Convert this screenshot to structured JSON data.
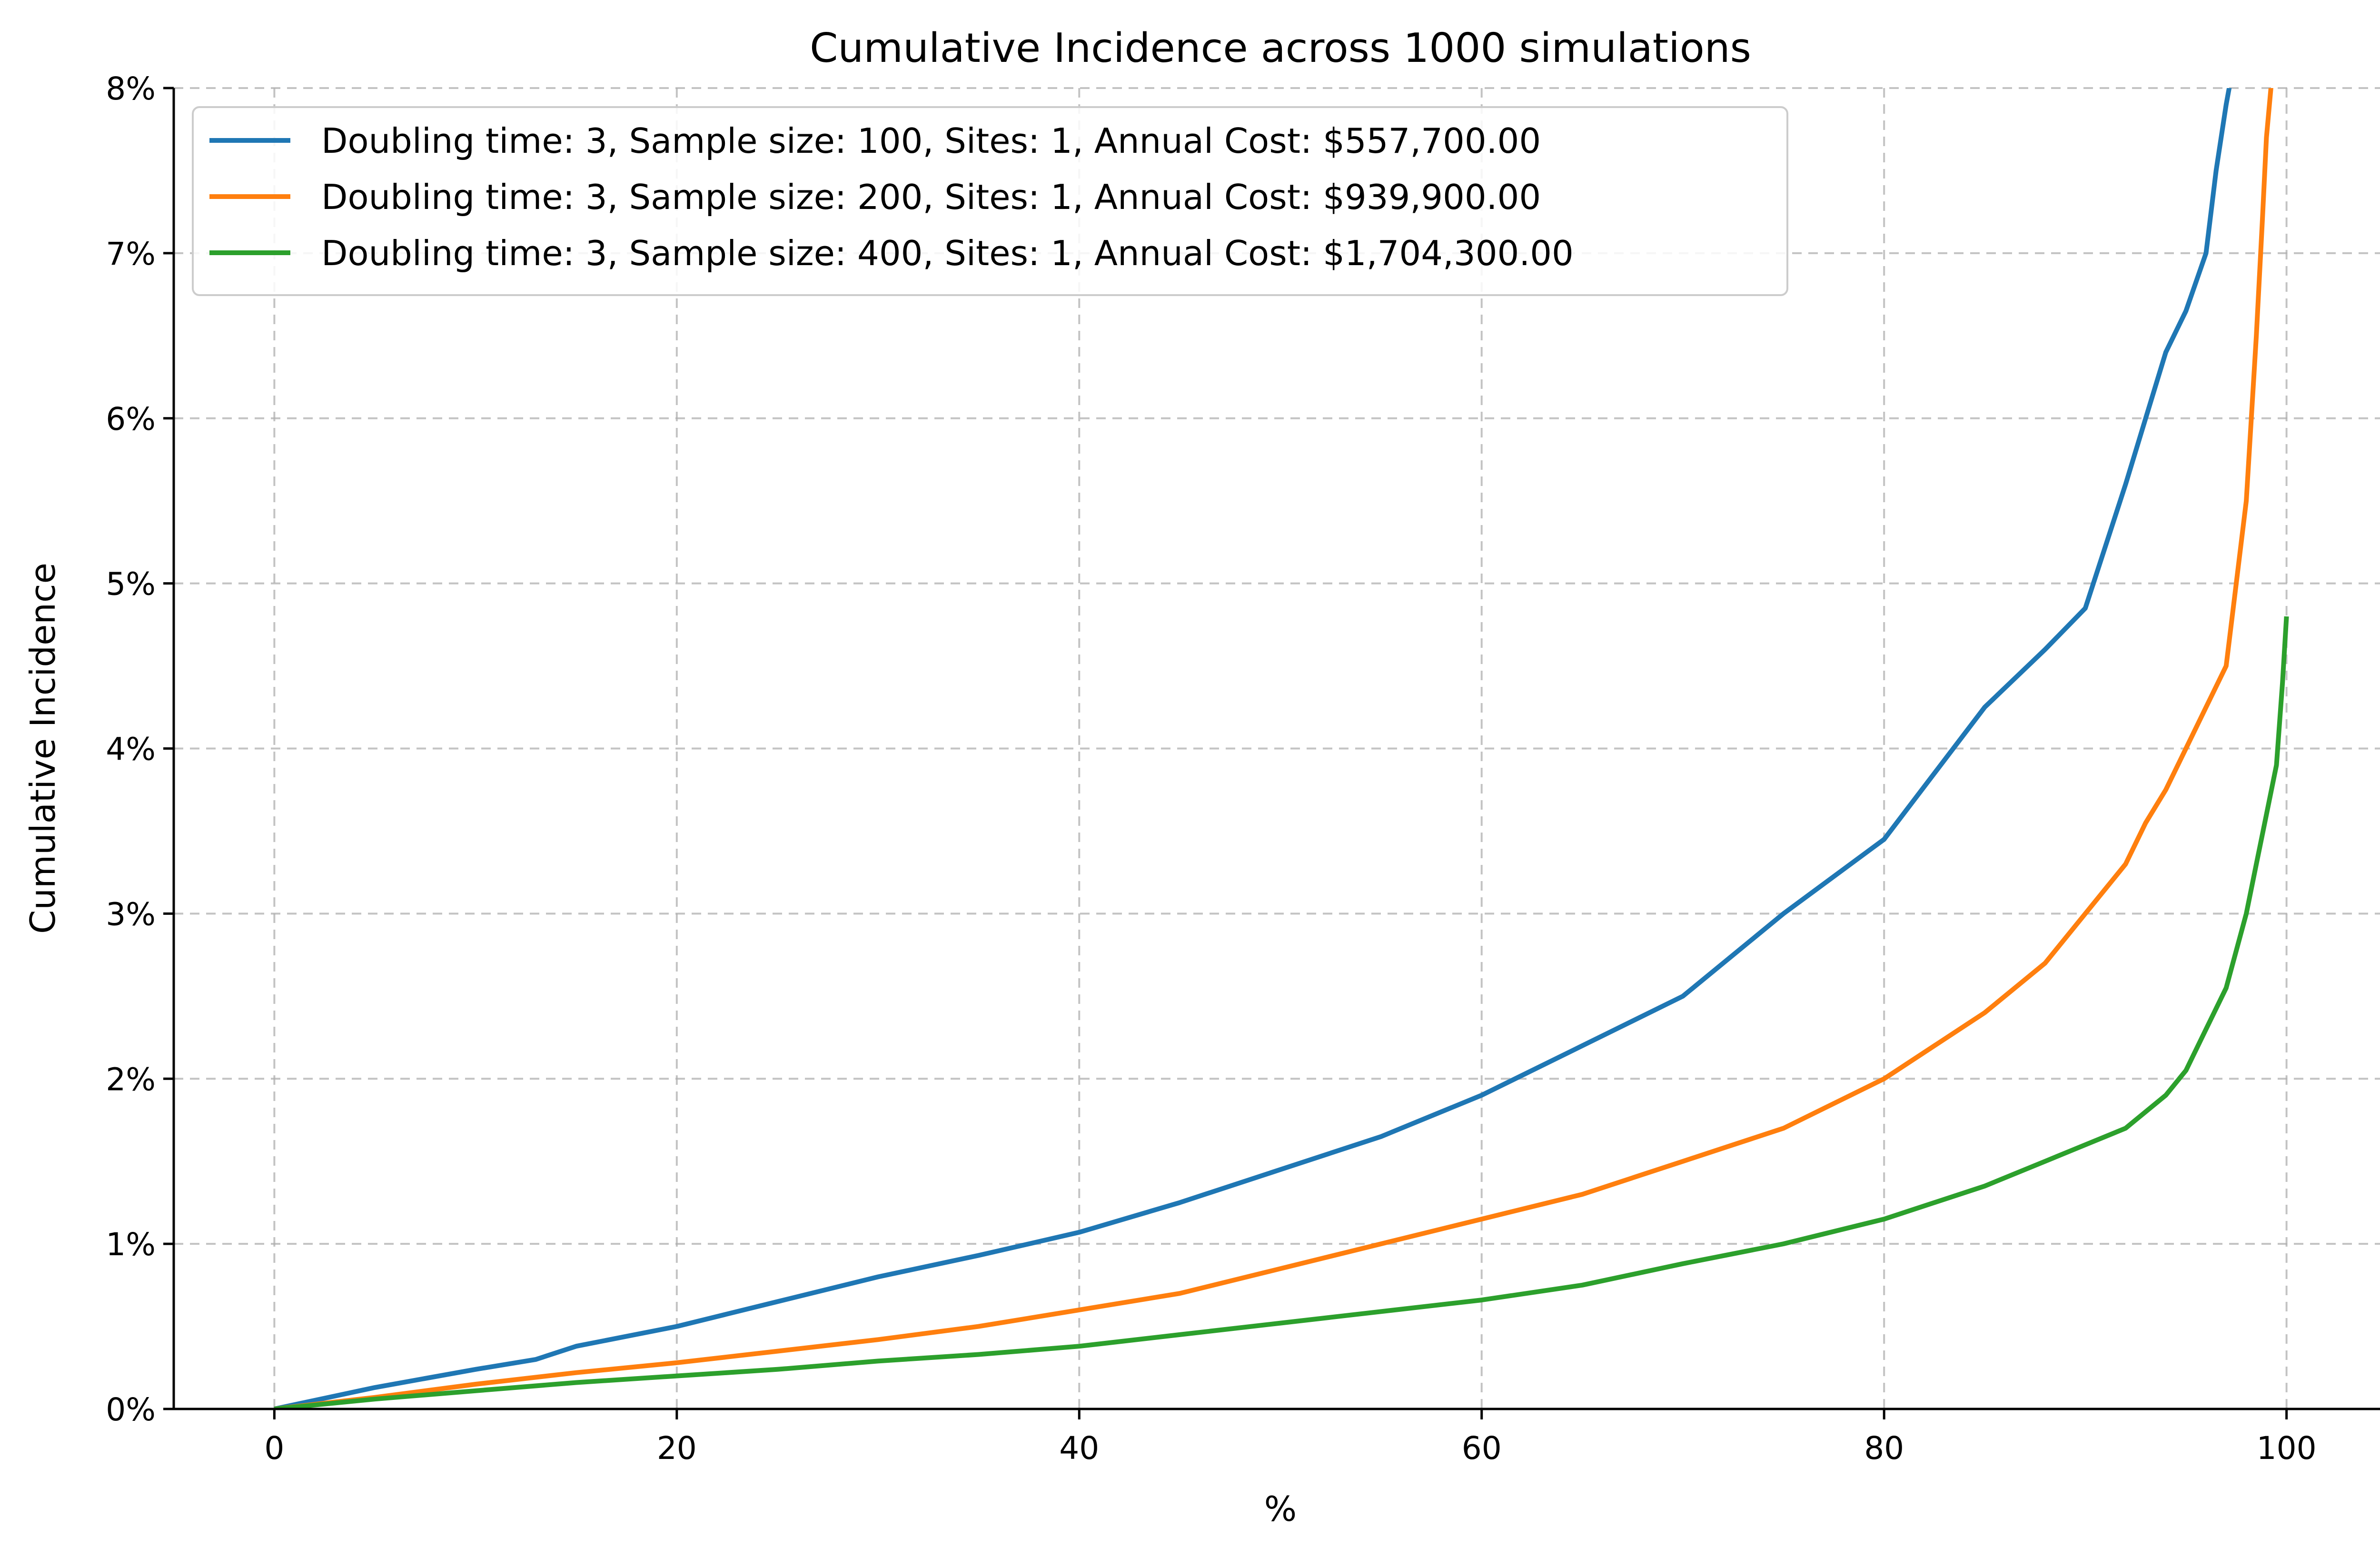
{
  "chart_data": {
    "type": "line",
    "title": "Cumulative Incidence across 1000 simulations",
    "xlabel": "%",
    "ylabel": "Cumulative Incidence",
    "xlim": [
      -5,
      105
    ],
    "ylim": [
      0,
      8
    ],
    "xticks": [
      0,
      20,
      40,
      60,
      80,
      100
    ],
    "xtick_labels": [
      "0",
      "20",
      "40",
      "60",
      "80",
      "100"
    ],
    "yticks": [
      0,
      1,
      2,
      3,
      4,
      5,
      6,
      7,
      8
    ],
    "ytick_labels": [
      "0%",
      "1%",
      "2%",
      "3%",
      "4%",
      "5%",
      "6%",
      "7%",
      "8%"
    ],
    "grid": true,
    "legend_position": "top-left",
    "series": [
      {
        "name": "Doubling time: 3, Sample size: 100, Sites: 1, Annual Cost: $557,700.00",
        "color": "#1f77b4",
        "x": [
          0,
          5,
          10,
          13,
          15,
          20,
          25,
          30,
          35,
          40,
          45,
          50,
          55,
          60,
          65,
          70,
          75,
          80,
          85,
          88,
          90,
          92,
          93,
          94,
          95,
          96,
          96.5,
          97,
          97.3
        ],
        "y": [
          0,
          0.13,
          0.24,
          0.3,
          0.38,
          0.5,
          0.65,
          0.8,
          0.93,
          1.07,
          1.25,
          1.45,
          1.65,
          1.9,
          2.2,
          2.5,
          3.0,
          3.45,
          4.25,
          4.6,
          4.85,
          5.6,
          6.0,
          6.4,
          6.65,
          7.0,
          7.5,
          7.9,
          8.1
        ]
      },
      {
        "name": "Doubling time: 3, Sample size: 200, Sites: 1, Annual Cost: $939,900.00",
        "color": "#ff7f0e",
        "x": [
          0,
          5,
          10,
          15,
          20,
          25,
          30,
          35,
          40,
          45,
          50,
          55,
          60,
          65,
          70,
          75,
          80,
          85,
          88,
          90,
          92,
          93,
          94,
          95,
          96,
          97,
          97.5,
          98,
          98.5,
          98.8,
          99,
          99.3
        ],
        "y": [
          0,
          0.07,
          0.15,
          0.22,
          0.28,
          0.35,
          0.42,
          0.5,
          0.6,
          0.7,
          0.85,
          1.0,
          1.15,
          1.3,
          1.5,
          1.7,
          2.0,
          2.4,
          2.7,
          3.0,
          3.3,
          3.55,
          3.75,
          4.0,
          4.25,
          4.5,
          5.0,
          5.5,
          6.5,
          7.2,
          7.7,
          8.1
        ]
      },
      {
        "name": "Doubling time: 3, Sample size: 400, Sites: 1, Annual Cost: $1,704,300.00",
        "color": "#2ca02c",
        "x": [
          0,
          5,
          10,
          15,
          20,
          25,
          30,
          35,
          40,
          45,
          50,
          55,
          60,
          65,
          70,
          75,
          80,
          85,
          88,
          90,
          92,
          94,
          95,
          96,
          97,
          98,
          98.5,
          99,
          99.5,
          99.8,
          100
        ],
        "y": [
          0,
          0.06,
          0.11,
          0.16,
          0.2,
          0.24,
          0.29,
          0.33,
          0.38,
          0.45,
          0.52,
          0.59,
          0.66,
          0.75,
          0.88,
          1.0,
          1.15,
          1.35,
          1.5,
          1.6,
          1.7,
          1.9,
          2.05,
          2.3,
          2.55,
          3.0,
          3.3,
          3.6,
          3.9,
          4.4,
          4.8
        ]
      }
    ]
  }
}
